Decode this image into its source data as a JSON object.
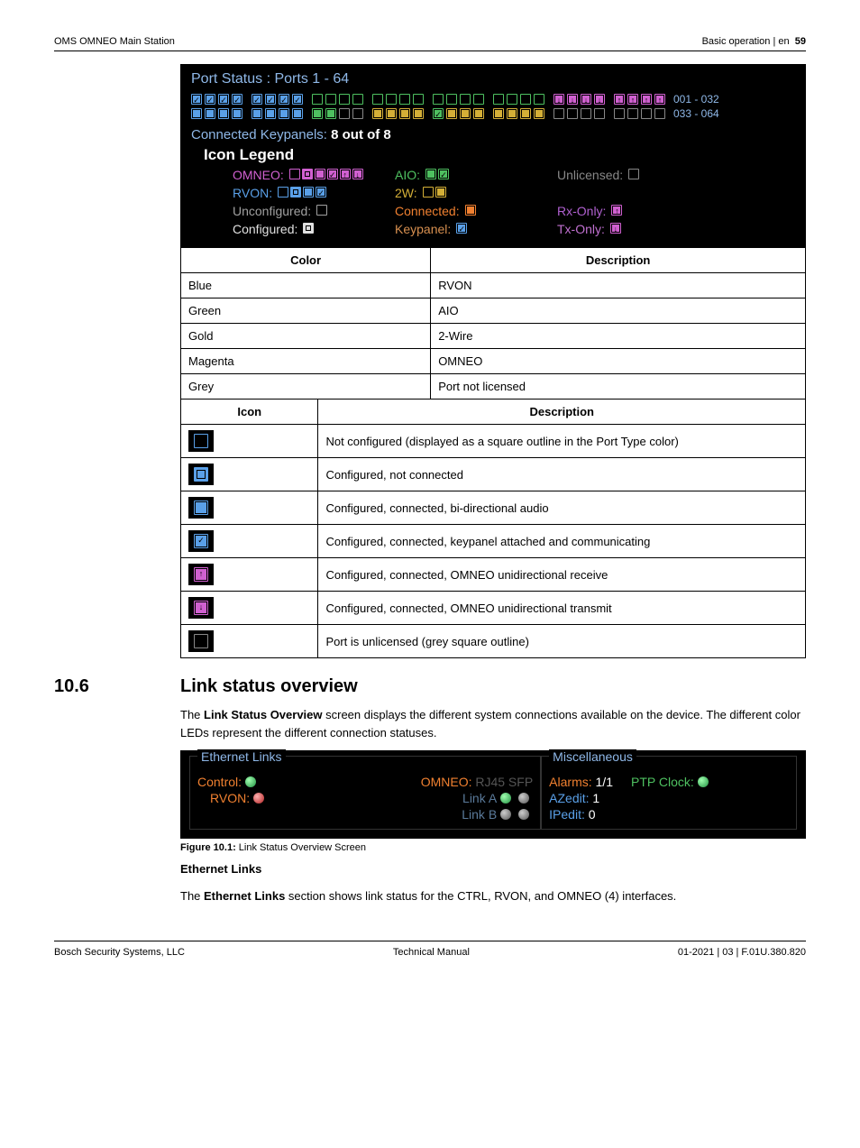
{
  "header": {
    "left": "OMS OMNEO Main Station",
    "right_section": "Basic operation | en",
    "page_no": "59"
  },
  "port_panel": {
    "title": "Port Status : Ports 1 - 64",
    "range1": "001 - 032",
    "range2": "033 - 064",
    "row1": [
      {
        "c": "#5aa0e8",
        "f": true,
        "chk": true
      },
      {
        "c": "#5aa0e8",
        "f": true,
        "chk": true
      },
      {
        "c": "#5aa0e8",
        "f": true,
        "chk": true
      },
      {
        "c": "#5aa0e8",
        "f": true,
        "chk": true
      },
      {
        "c": "#5aa0e8",
        "f": true,
        "chk": true
      },
      {
        "c": "#5aa0e8",
        "f": true,
        "chk": true
      },
      {
        "c": "#5aa0e8",
        "f": true,
        "chk": true
      },
      {
        "c": "#5aa0e8",
        "f": true,
        "chk": true
      },
      {
        "c": "#4ec060",
        "f": false
      },
      {
        "c": "#4ec060",
        "f": false
      },
      {
        "c": "#4ec060",
        "f": false
      },
      {
        "c": "#4ec060",
        "f": false
      },
      {
        "c": "#4ec060",
        "f": false
      },
      {
        "c": "#4ec060",
        "f": false
      },
      {
        "c": "#4ec060",
        "f": false
      },
      {
        "c": "#4ec060",
        "f": false
      },
      {
        "c": "#4ec060",
        "f": false
      },
      {
        "c": "#4ec060",
        "f": false
      },
      {
        "c": "#4ec060",
        "f": false
      },
      {
        "c": "#4ec060",
        "f": false
      },
      {
        "c": "#4ec060",
        "f": false
      },
      {
        "c": "#4ec060",
        "f": false
      },
      {
        "c": "#4ec060",
        "f": false
      },
      {
        "c": "#4ec060",
        "f": false
      },
      {
        "c": "#d060d0",
        "f": true,
        "dn": true
      },
      {
        "c": "#d060d0",
        "f": true,
        "dn": true
      },
      {
        "c": "#d060d0",
        "f": true,
        "dn": true
      },
      {
        "c": "#d060d0",
        "f": true,
        "dn": true
      },
      {
        "c": "#d060d0",
        "f": true,
        "up": true
      },
      {
        "c": "#d060d0",
        "f": true,
        "up": true
      },
      {
        "c": "#d060d0",
        "f": true,
        "up": true
      },
      {
        "c": "#d060d0",
        "f": true,
        "up": true
      }
    ],
    "row2": [
      {
        "c": "#5aa0e8",
        "f": true
      },
      {
        "c": "#5aa0e8",
        "f": true
      },
      {
        "c": "#5aa0e8",
        "f": true
      },
      {
        "c": "#5aa0e8",
        "f": true
      },
      {
        "c": "#5aa0e8",
        "f": true
      },
      {
        "c": "#5aa0e8",
        "f": true
      },
      {
        "c": "#5aa0e8",
        "f": true
      },
      {
        "c": "#5aa0e8",
        "f": true
      },
      {
        "c": "#4ec060",
        "f": true
      },
      {
        "c": "#4ec060",
        "f": true
      },
      {
        "c": "#888",
        "f": false
      },
      {
        "c": "#888",
        "f": false
      },
      {
        "c": "#d4af37",
        "f": true
      },
      {
        "c": "#d4af37",
        "f": true
      },
      {
        "c": "#d4af37",
        "f": true
      },
      {
        "c": "#d4af37",
        "f": true
      },
      {
        "c": "#4ec060",
        "f": true,
        "chk": true
      },
      {
        "c": "#d4af37",
        "f": true
      },
      {
        "c": "#d4af37",
        "f": true
      },
      {
        "c": "#d4af37",
        "f": true
      },
      {
        "c": "#d4af37",
        "f": true
      },
      {
        "c": "#d4af37",
        "f": true
      },
      {
        "c": "#d4af37",
        "f": true
      },
      {
        "c": "#d4af37",
        "f": true
      },
      {
        "c": "#888",
        "f": false
      },
      {
        "c": "#888",
        "f": false
      },
      {
        "c": "#888",
        "f": false
      },
      {
        "c": "#888",
        "f": false
      },
      {
        "c": "#888",
        "f": false
      },
      {
        "c": "#888",
        "f": false
      },
      {
        "c": "#888",
        "f": false
      },
      {
        "c": "#888",
        "f": false
      }
    ],
    "keypanels_label": "Connected Keypanels:",
    "keypanels_value": "8 out of 8",
    "legend_title": "Icon Legend",
    "legend": {
      "omneo": "OMNEO:",
      "aio": "AIO:",
      "unlic": "Unlicensed:",
      "rvon": "RVON:",
      "tw": "2W:",
      "unconf": "Unconfigured:",
      "conn": "Connected:",
      "rx": "Rx-Only:",
      "conf": "Configured:",
      "keyp": "Keypanel:",
      "tx": "Tx-Only:"
    },
    "legend_icons": {
      "omneo": [
        {
          "c": "#d060d0",
          "f": false
        },
        {
          "c": "#d060d0",
          "f": true,
          "thick": true
        },
        {
          "c": "#d060d0",
          "f": true
        },
        {
          "c": "#d060d0",
          "f": true,
          "chk": true
        },
        {
          "c": "#d060d0",
          "f": true,
          "up": true
        },
        {
          "c": "#d060d0",
          "f": true,
          "dn": true
        }
      ],
      "rvon": [
        {
          "c": "#5aa0e8",
          "f": false
        },
        {
          "c": "#5aa0e8",
          "f": true,
          "thick": true
        },
        {
          "c": "#5aa0e8",
          "f": true
        },
        {
          "c": "#5aa0e8",
          "f": true,
          "chk": true
        }
      ],
      "aio": [
        {
          "c": "#4ec060",
          "f": true
        },
        {
          "c": "#4ec060",
          "f": true,
          "chk": true
        }
      ],
      "tw": [
        {
          "c": "#d4af37",
          "f": false
        },
        {
          "c": "#d4af37",
          "f": true
        }
      ],
      "unlic": [
        {
          "c": "#888",
          "f": false
        }
      ],
      "unconf": [
        {
          "c": "#a0a0a0",
          "f": false
        }
      ],
      "conf": [
        {
          "c": "#e0e0e0",
          "f": true,
          "thick": true
        }
      ],
      "conn": [
        {
          "c": "#f08030",
          "f": true
        }
      ],
      "keyp": [
        {
          "c": "#5aa0e8",
          "f": true,
          "chk": true
        }
      ],
      "rx": [
        {
          "c": "#d060d0",
          "f": true,
          "up": true
        }
      ],
      "tx": [
        {
          "c": "#d060d0",
          "f": true,
          "dn": true
        }
      ]
    }
  },
  "color_table": {
    "h1": "Color",
    "h2": "Description",
    "rows": [
      {
        "c": "Blue",
        "d": "RVON"
      },
      {
        "c": "Green",
        "d": "AIO"
      },
      {
        "c": "Gold",
        "d": "2-Wire"
      },
      {
        "c": "Magenta",
        "d": "OMNEO"
      },
      {
        "c": "Grey",
        "d": "Port not licensed"
      }
    ]
  },
  "icon_table": {
    "h1": "Icon",
    "h2": "Description",
    "rows": [
      {
        "icon": {
          "c": "#5aa0e8",
          "f": false
        },
        "d": "Not configured (displayed as a square outline in the Port Type color)"
      },
      {
        "icon": {
          "c": "#5aa0e8",
          "f": true,
          "thick": true
        },
        "d": "Configured, not connected"
      },
      {
        "icon": {
          "c": "#5aa0e8",
          "f": true
        },
        "d": "Configured, connected, bi-directional audio"
      },
      {
        "icon": {
          "c": "#5aa0e8",
          "f": true,
          "chk": true
        },
        "d": "Configured, connected, keypanel attached and communicating"
      },
      {
        "icon": {
          "c": "#d060d0",
          "f": true,
          "up": true
        },
        "d": "Configured, connected, OMNEO unidirectional receive"
      },
      {
        "icon": {
          "c": "#d060d0",
          "f": true,
          "dn": true
        },
        "d": "Configured, connected, OMNEO unidirectional transmit"
      },
      {
        "icon": {
          "c": "#888",
          "f": false
        },
        "d": "Port is unlicensed (grey square outline)"
      }
    ]
  },
  "section": {
    "num": "10.6",
    "title": "Link status overview"
  },
  "body": {
    "p1a": "The ",
    "p1b": "Link Status Overview",
    "p1c": " screen displays the different system connections available on the device. The different color LEDs represent the different connection statuses."
  },
  "link_panel": {
    "col1_title": "Ethernet Links",
    "col2_title": "Miscellaneous",
    "control_label": "Control:",
    "control_led": "green",
    "rvon_label": "RVON:",
    "rvon_led": "red",
    "omneo_label": "OMNEO:",
    "omneo_mode": "RJ45 SFP",
    "linka": "Link A",
    "linka_led1": "green",
    "linka_led2": "grey",
    "linkb": "Link B",
    "linkb_led1": "grey",
    "linkb_led2": "grey",
    "alarms_label": "Alarms:",
    "alarms_val": "1/1",
    "azedit_label": "AZedit:",
    "azedit_val": "1",
    "ipedit_label": "IPedit:",
    "ipedit_val": "0",
    "ptp_label": "PTP Clock:",
    "ptp_led": "green",
    "colors": {
      "control": "#f08030",
      "rvon": "#f08030",
      "omneo": "#f08030",
      "alarms": "#f08030",
      "azedit": "#5aa0e8",
      "ipedit": "#5aa0e8",
      "ptp": "#4ec060",
      "omneo_mode": "#555",
      "link": "#5a7a9a"
    }
  },
  "fig_caption": {
    "b": "Figure 10.1:",
    "t": " Link Status Overview Screen"
  },
  "eth_heading": "Ethernet Links",
  "eth_body_a": "The ",
  "eth_body_b": "Ethernet Links",
  "eth_body_c": " section shows link status for the CTRL, RVON, and OMNEO (4) interfaces.",
  "footer": {
    "left": "Bosch Security Systems, LLC",
    "mid": "Technical Manual",
    "right": "01-2021 | 03 | F.01U.380.820"
  }
}
